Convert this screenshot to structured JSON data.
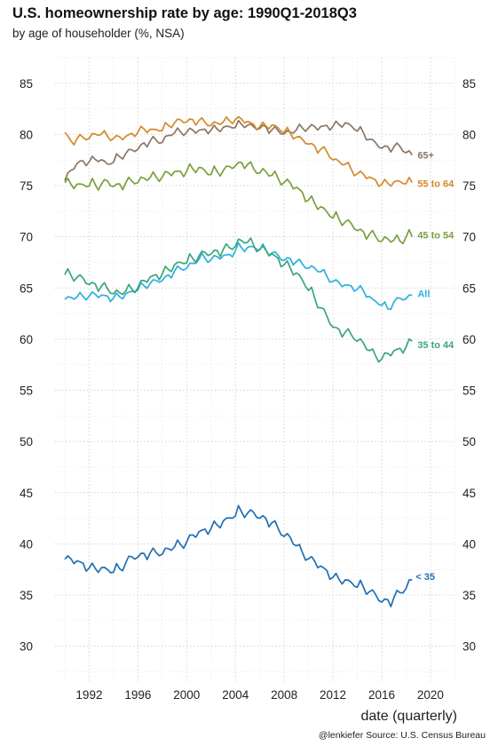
{
  "header": {
    "title": "U.S. homeownership rate by age: 1990Q1-2018Q3",
    "subtitle": "by age of householder (%, NSA)"
  },
  "caption": "@lenkiefer Source: U.S. Census Bureau",
  "chart_data": {
    "type": "line",
    "title": "U.S. homeownership rate by age: 1990Q1-2018Q3",
    "subtitle": "by age of householder (%, NSA)",
    "xlabel": "date (quarterly)",
    "ylabel": "",
    "x_ticks": [
      1992,
      1996,
      2000,
      2004,
      2008,
      2012,
      2016,
      2020
    ],
    "y_ticks": [
      30,
      35,
      40,
      45,
      50,
      55,
      60,
      65,
      70,
      75,
      80,
      85
    ],
    "xlim": [
      1989.2,
      2021.9
    ],
    "ylim": [
      26.5,
      87.5
    ],
    "y_axis_both_sides": true,
    "grid": true,
    "legend": "direct labels at line ends",
    "series": [
      {
        "name": "65+",
        "color": "#8c7563",
        "values": [
          [
            1990.0,
            75.5
          ],
          [
            1990.75,
            76.8
          ],
          [
            1991.25,
            77.3
          ],
          [
            1992.0,
            77.4
          ],
          [
            1992.75,
            77.6
          ],
          [
            1993.5,
            77.0
          ],
          [
            1994.25,
            77.6
          ],
          [
            1995.0,
            78.1
          ],
          [
            1995.75,
            78.5
          ],
          [
            1996.5,
            79.1
          ],
          [
            1997.25,
            79.4
          ],
          [
            1998.0,
            79.4
          ],
          [
            1998.75,
            80.0
          ],
          [
            1999.5,
            80.2
          ],
          [
            2000.25,
            80.3
          ],
          [
            2001.0,
            80.3
          ],
          [
            2001.75,
            80.5
          ],
          [
            2002.5,
            80.5
          ],
          [
            2003.25,
            80.6
          ],
          [
            2004.0,
            80.8
          ],
          [
            2004.75,
            81.0
          ],
          [
            2005.5,
            80.6
          ],
          [
            2006.25,
            80.8
          ],
          [
            2007.0,
            80.4
          ],
          [
            2007.75,
            80.3
          ],
          [
            2008.5,
            80.1
          ],
          [
            2009.25,
            80.5
          ],
          [
            2010.0,
            80.7
          ],
          [
            2010.75,
            80.6
          ],
          [
            2011.5,
            80.8
          ],
          [
            2012.25,
            80.9
          ],
          [
            2013.0,
            81.0
          ],
          [
            2013.75,
            80.6
          ],
          [
            2014.5,
            80.1
          ],
          [
            2015.25,
            79.2
          ],
          [
            2016.0,
            78.8
          ],
          [
            2016.75,
            78.7
          ],
          [
            2017.5,
            78.8
          ],
          [
            2018.25,
            78.2
          ],
          [
            2018.5,
            78.0
          ]
        ]
      },
      {
        "name": "55 to 64",
        "color": "#d4892a",
        "values": [
          [
            1990.0,
            80.2
          ],
          [
            1990.5,
            79.3
          ],
          [
            1991.25,
            79.6
          ],
          [
            1992.0,
            79.8
          ],
          [
            1992.75,
            80.0
          ],
          [
            1993.5,
            79.8
          ],
          [
            1994.25,
            79.6
          ],
          [
            1995.0,
            79.7
          ],
          [
            1995.75,
            80.2
          ],
          [
            1996.5,
            80.5
          ],
          [
            1997.25,
            80.3
          ],
          [
            1998.0,
            80.5
          ],
          [
            1998.75,
            81.0
          ],
          [
            1999.5,
            81.3
          ],
          [
            2000.25,
            81.4
          ],
          [
            2001.0,
            81.3
          ],
          [
            2001.75,
            81.1
          ],
          [
            2002.5,
            81.0
          ],
          [
            2003.25,
            81.2
          ],
          [
            2004.0,
            81.5
          ],
          [
            2004.75,
            81.3
          ],
          [
            2005.5,
            80.9
          ],
          [
            2006.25,
            80.8
          ],
          [
            2007.0,
            80.8
          ],
          [
            2007.75,
            80.4
          ],
          [
            2008.5,
            80.1
          ],
          [
            2009.25,
            79.5
          ],
          [
            2010.0,
            79.2
          ],
          [
            2010.75,
            78.6
          ],
          [
            2011.5,
            78.3
          ],
          [
            2012.25,
            77.4
          ],
          [
            2013.0,
            77.0
          ],
          [
            2013.75,
            76.3
          ],
          [
            2014.5,
            76.0
          ],
          [
            2015.25,
            75.6
          ],
          [
            2016.0,
            75.2
          ],
          [
            2016.75,
            75.2
          ],
          [
            2017.5,
            75.3
          ],
          [
            2018.25,
            75.3
          ],
          [
            2018.5,
            75.3
          ]
        ]
      },
      {
        "name": "45 to 54",
        "color": "#7a9f3f",
        "values": [
          [
            1990.0,
            75.3
          ],
          [
            1990.5,
            75.1
          ],
          [
            1991.25,
            74.9
          ],
          [
            1992.0,
            75.1
          ],
          [
            1992.75,
            75.0
          ],
          [
            1993.5,
            75.3
          ],
          [
            1994.25,
            75.0
          ],
          [
            1995.0,
            75.2
          ],
          [
            1995.75,
            75.5
          ],
          [
            1996.5,
            75.6
          ],
          [
            1997.25,
            75.7
          ],
          [
            1998.0,
            75.9
          ],
          [
            1998.75,
            76.2
          ],
          [
            1999.5,
            76.3
          ],
          [
            2000.25,
            76.6
          ],
          [
            2001.0,
            76.6
          ],
          [
            2001.75,
            76.2
          ],
          [
            2002.5,
            76.3
          ],
          [
            2003.25,
            76.5
          ],
          [
            2004.0,
            77.1
          ],
          [
            2004.75,
            77.2
          ],
          [
            2005.5,
            76.6
          ],
          [
            2006.25,
            76.4
          ],
          [
            2007.0,
            75.9
          ],
          [
            2007.75,
            75.5
          ],
          [
            2008.5,
            75.1
          ],
          [
            2009.25,
            74.5
          ],
          [
            2010.0,
            73.7
          ],
          [
            2010.75,
            73.0
          ],
          [
            2011.5,
            72.3
          ],
          [
            2012.25,
            71.8
          ],
          [
            2013.0,
            71.4
          ],
          [
            2013.75,
            71.0
          ],
          [
            2014.5,
            70.4
          ],
          [
            2015.25,
            70.1
          ],
          [
            2016.0,
            69.8
          ],
          [
            2016.75,
            69.6
          ],
          [
            2017.5,
            69.5
          ],
          [
            2018.25,
            70.3
          ],
          [
            2018.5,
            70.0
          ]
        ]
      },
      {
        "name": "All",
        "color": "#2ab0e0",
        "values": [
          [
            1990.0,
            63.9
          ],
          [
            1990.75,
            64.0
          ],
          [
            1991.5,
            64.1
          ],
          [
            1992.25,
            64.3
          ],
          [
            1993.0,
            64.2
          ],
          [
            1993.75,
            64.1
          ],
          [
            1994.5,
            64.1
          ],
          [
            1995.25,
            64.4
          ],
          [
            1996.0,
            64.9
          ],
          [
            1996.75,
            65.3
          ],
          [
            1997.5,
            65.6
          ],
          [
            1998.25,
            66.0
          ],
          [
            1999.0,
            66.6
          ],
          [
            1999.75,
            67.0
          ],
          [
            2000.5,
            67.3
          ],
          [
            2001.25,
            67.9
          ],
          [
            2002.0,
            67.8
          ],
          [
            2002.75,
            68.0
          ],
          [
            2003.5,
            68.2
          ],
          [
            2004.25,
            69.0
          ],
          [
            2004.75,
            68.8
          ],
          [
            2005.5,
            68.9
          ],
          [
            2006.25,
            68.8
          ],
          [
            2007.0,
            68.4
          ],
          [
            2007.75,
            67.9
          ],
          [
            2008.5,
            67.8
          ],
          [
            2009.25,
            67.4
          ],
          [
            2010.0,
            67.1
          ],
          [
            2010.75,
            66.7
          ],
          [
            2011.5,
            66.1
          ],
          [
            2012.25,
            65.5
          ],
          [
            2013.0,
            65.2
          ],
          [
            2013.75,
            65.1
          ],
          [
            2014.5,
            64.7
          ],
          [
            2015.25,
            63.7
          ],
          [
            2016.0,
            63.4
          ],
          [
            2016.5,
            62.9
          ],
          [
            2017.0,
            63.6
          ],
          [
            2017.75,
            64.0
          ],
          [
            2018.25,
            64.2
          ],
          [
            2018.5,
            64.3
          ]
        ]
      },
      {
        "name": "35 to 44",
        "color": "#3aa67a",
        "values": [
          [
            1990.0,
            66.3
          ],
          [
            1990.75,
            66.1
          ],
          [
            1991.5,
            65.8
          ],
          [
            1992.25,
            65.4
          ],
          [
            1993.0,
            65.1
          ],
          [
            1993.75,
            64.8
          ],
          [
            1994.5,
            64.4
          ],
          [
            1995.25,
            64.7
          ],
          [
            1996.0,
            65.1
          ],
          [
            1996.75,
            65.8
          ],
          [
            1997.5,
            66.2
          ],
          [
            1998.25,
            66.6
          ],
          [
            1999.0,
            67.1
          ],
          [
            1999.75,
            67.5
          ],
          [
            2000.5,
            67.8
          ],
          [
            2001.25,
            68.2
          ],
          [
            2002.0,
            68.5
          ],
          [
            2002.75,
            68.6
          ],
          [
            2003.5,
            68.9
          ],
          [
            2004.25,
            69.5
          ],
          [
            2004.75,
            69.5
          ],
          [
            2005.5,
            69.1
          ],
          [
            2006.25,
            68.7
          ],
          [
            2007.0,
            68.2
          ],
          [
            2007.75,
            67.6
          ],
          [
            2008.5,
            66.9
          ],
          [
            2009.25,
            66.0
          ],
          [
            2010.0,
            64.9
          ],
          [
            2010.75,
            63.5
          ],
          [
            2011.5,
            62.1
          ],
          [
            2012.25,
            61.0
          ],
          [
            2013.0,
            60.6
          ],
          [
            2013.75,
            60.3
          ],
          [
            2014.5,
            59.5
          ],
          [
            2015.25,
            58.4
          ],
          [
            2016.0,
            58.1
          ],
          [
            2016.75,
            58.6
          ],
          [
            2017.5,
            59.0
          ],
          [
            2018.25,
            59.5
          ],
          [
            2018.5,
            59.8
          ]
        ]
      },
      {
        "name": "< 35",
        "color": "#1f6fb3",
        "values": [
          [
            1990.0,
            38.5
          ],
          [
            1990.75,
            38.3
          ],
          [
            1991.5,
            38.0
          ],
          [
            1992.25,
            37.6
          ],
          [
            1993.0,
            37.5
          ],
          [
            1993.75,
            37.3
          ],
          [
            1994.5,
            37.5
          ],
          [
            1995.25,
            38.4
          ],
          [
            1996.0,
            38.9
          ],
          [
            1996.75,
            39.0
          ],
          [
            1997.5,
            39.1
          ],
          [
            1998.25,
            39.3
          ],
          [
            1999.0,
            39.6
          ],
          [
            1999.75,
            40.0
          ],
          [
            2000.5,
            40.7
          ],
          [
            2001.25,
            41.2
          ],
          [
            2002.0,
            41.6
          ],
          [
            2002.75,
            41.9
          ],
          [
            2003.5,
            42.4
          ],
          [
            2004.25,
            43.1
          ],
          [
            2004.75,
            43.0
          ],
          [
            2005.5,
            42.9
          ],
          [
            2006.25,
            42.6
          ],
          [
            2007.0,
            42.0
          ],
          [
            2007.75,
            41.2
          ],
          [
            2008.5,
            40.5
          ],
          [
            2009.25,
            39.3
          ],
          [
            2010.0,
            38.6
          ],
          [
            2010.75,
            37.9
          ],
          [
            2011.5,
            37.3
          ],
          [
            2012.25,
            36.6
          ],
          [
            2013.0,
            36.3
          ],
          [
            2013.75,
            36.0
          ],
          [
            2014.5,
            35.7
          ],
          [
            2015.25,
            35.1
          ],
          [
            2016.0,
            34.5
          ],
          [
            2016.75,
            34.4
          ],
          [
            2017.5,
            35.2
          ],
          [
            2018.25,
            36.2
          ],
          [
            2018.5,
            36.5
          ]
        ]
      }
    ]
  }
}
